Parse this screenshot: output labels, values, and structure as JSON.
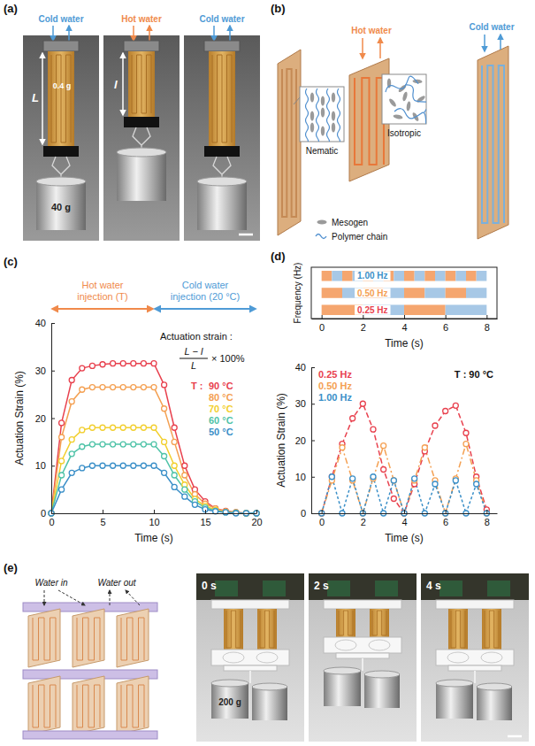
{
  "figure": {
    "panel_labels": [
      "(a)",
      "(b)",
      "(c)",
      "(d)",
      "(e)"
    ],
    "a": {
      "inlets": [
        "Cold water",
        "Hot water",
        "Cold water"
      ],
      "long_length": "L",
      "short_length": "l",
      "film_mass": "0.4 g",
      "load": "40 g"
    },
    "b": {
      "inlets": [
        "Hot water",
        "Cold water"
      ],
      "states": [
        "Nematic",
        "Isotropic"
      ],
      "key": [
        "Mesogen",
        "Polymer chain"
      ]
    },
    "e": {
      "flows": [
        "Water in",
        "Water out"
      ],
      "times": [
        "0 s",
        "2 s",
        "4 s"
      ],
      "load": "200 g"
    }
  },
  "chart_data": [
    {
      "type": "line",
      "xlabel": "Time (s)",
      "ylabel": "Actuation Strain (%)",
      "x": [
        0,
        1,
        2,
        3,
        4,
        5,
        6,
        7,
        8,
        9,
        10,
        11,
        12,
        13,
        14,
        15,
        16,
        17,
        18,
        19,
        20
      ],
      "xlim": [
        0,
        20
      ],
      "xticks": [
        0,
        5,
        10,
        15,
        20
      ],
      "ylim": [
        0,
        40
      ],
      "yticks": [
        0,
        10,
        20,
        30,
        40
      ],
      "marker": "circle",
      "line_style": "solid",
      "legend": "right",
      "phases": [
        {
          "start": 0,
          "end": 10,
          "label": "Hot water injection (T)",
          "color": "#f08a4b"
        },
        {
          "start": 10,
          "end": 20,
          "label": "Cold water injection (20 °C)",
          "color": "#4f9bd6"
        }
      ],
      "annotations": [
        "Actuation strain :",
        "L − l",
        "L",
        "× 100%",
        "T :"
      ],
      "series": [
        {
          "name": "90 °C",
          "color": "#e8414e",
          "values": [
            0,
            19,
            28,
            30.5,
            31,
            31.3,
            31.5,
            31.5,
            31.5,
            31.5,
            31.5,
            27,
            18,
            10,
            5,
            2.5,
            1,
            0.5,
            0.2,
            0,
            0
          ]
        },
        {
          "name": "80 °C",
          "color": "#f4a052",
          "values": [
            0,
            16,
            23.5,
            26,
            26.5,
            26.5,
            26.5,
            26.5,
            26.5,
            26.5,
            26.5,
            22,
            15,
            8,
            4,
            2,
            1,
            0.4,
            0.2,
            0,
            0
          ]
        },
        {
          "name": "70 °C",
          "color": "#f2cf2e",
          "values": [
            0,
            11,
            15.5,
            17.5,
            18,
            18,
            18,
            18,
            18,
            18,
            18,
            15,
            10,
            6,
            3,
            1.5,
            0.7,
            0.3,
            0.1,
            0,
            0
          ]
        },
        {
          "name": "60 °C",
          "color": "#4fc3a8",
          "values": [
            0,
            8,
            12.5,
            14,
            14.5,
            14.5,
            14.5,
            14.5,
            14.5,
            14.5,
            14.5,
            12,
            8,
            5,
            2.5,
            1.2,
            0.5,
            0.2,
            0.1,
            0,
            0
          ]
        },
        {
          "name": "50 °C",
          "color": "#3a8fc8",
          "values": [
            0,
            5,
            8.5,
            9.5,
            10,
            10,
            10,
            10,
            10,
            10,
            10,
            8.5,
            5.5,
            3.5,
            1.8,
            0.8,
            0.4,
            0.2,
            0,
            0,
            0
          ]
        }
      ]
    },
    {
      "type": "timeline",
      "xlabel": "Time (s)",
      "ylabel": "Frequency (Hz)",
      "xlim": [
        -0.5,
        8.5
      ],
      "xticks": [
        0,
        2,
        4,
        6,
        8
      ],
      "tick_labels": "x",
      "series": [
        {
          "name": "1.00 Hz",
          "color": "#3a8fc8",
          "starts": [
            0,
            0.5,
            1,
            1.5,
            2,
            2.5,
            3,
            3.5,
            4,
            4.5,
            5,
            5.5,
            6,
            6.5,
            7,
            7.5
          ],
          "ends": [
            0.5,
            1,
            1.5,
            2,
            2.5,
            3,
            3.5,
            4,
            4.5,
            5,
            5.5,
            6,
            6.5,
            7,
            7.5,
            8
          ],
          "colors": [
            "#f5a66f",
            "#a7c8e6",
            "#f5a66f",
            "#a7c8e6",
            "#f5a66f",
            "#a7c8e6",
            "#f5a66f",
            "#a7c8e6",
            "#f5a66f",
            "#a7c8e6",
            "#f5a66f",
            "#a7c8e6",
            "#f5a66f",
            "#a7c8e6",
            "#f5a66f",
            "#a7c8e6"
          ]
        },
        {
          "name": "0.50 Hz",
          "color": "#f4a052",
          "starts": [
            0,
            1,
            2,
            3,
            4,
            5,
            6,
            7
          ],
          "ends": [
            1,
            2,
            3,
            4,
            5,
            6,
            7,
            8
          ],
          "colors": [
            "#f5a66f",
            "#a7c8e6",
            "#f5a66f",
            "#a7c8e6",
            "#f5a66f",
            "#a7c8e6",
            "#f5a66f",
            "#a7c8e6"
          ]
        },
        {
          "name": "0.25 Hz",
          "color": "#e8414e",
          "starts": [
            0,
            2,
            4,
            6
          ],
          "ends": [
            2,
            4,
            6,
            8
          ],
          "colors": [
            "#f5a66f",
            "#a7c8e6",
            "#f5a66f",
            "#a7c8e6"
          ]
        }
      ]
    },
    {
      "type": "line",
      "xlabel": "Time (s)",
      "ylabel": "Actuation Strain (%)",
      "x": [
        0,
        0.5,
        1,
        1.5,
        2,
        2.5,
        3,
        3.5,
        4,
        4.5,
        5,
        5.5,
        6,
        6.5,
        7,
        7.5,
        8
      ],
      "xlim": [
        -0.5,
        8.5
      ],
      "xticks": [
        0,
        2,
        4,
        6,
        8
      ],
      "ylim": [
        0,
        40
      ],
      "yticks": [
        0,
        10,
        20,
        30,
        40
      ],
      "marker": "circle",
      "legend": "upper left",
      "annotations": [
        "T : 90 °C"
      ],
      "series": [
        {
          "name": "0.25 Hz",
          "color": "#e8414e",
          "line_style": "dashed",
          "values": [
            0,
            10,
            19,
            26,
            30,
            23,
            12,
            4,
            0,
            8,
            17,
            24,
            28,
            29.5,
            22,
            10,
            1
          ]
        },
        {
          "name": "0.50 Hz",
          "color": "#f4a052",
          "line_style": "dashdot",
          "values": [
            0,
            9,
            18,
            9,
            0,
            9.5,
            18.5,
            9,
            0,
            9,
            18,
            9,
            0,
            9.5,
            19,
            9,
            0
          ]
        },
        {
          "name": "1.00 Hz",
          "color": "#3a8fc8",
          "line_style": "dotted",
          "values": [
            0,
            10,
            0,
            9.5,
            0,
            10,
            0,
            9,
            0,
            9.5,
            0,
            8,
            0,
            9,
            0,
            8,
            0
          ]
        }
      ]
    }
  ]
}
